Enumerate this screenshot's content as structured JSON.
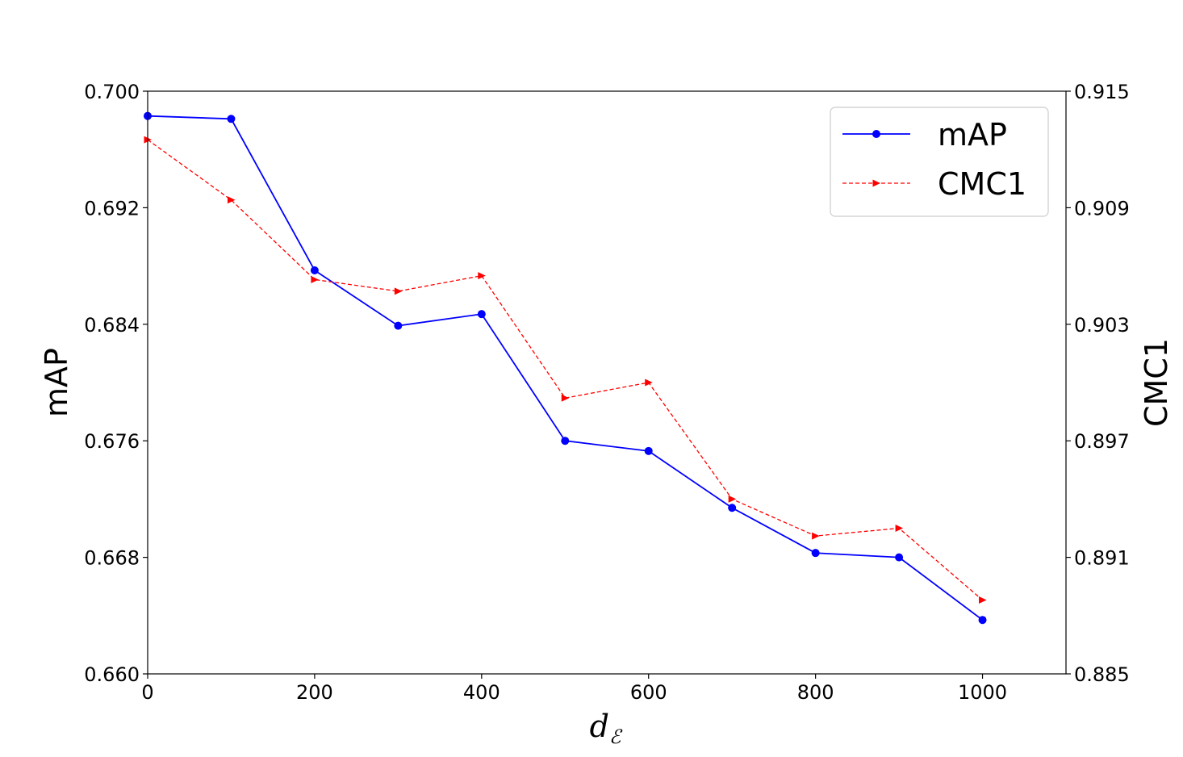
{
  "chart_data": {
    "type": "line",
    "title": "",
    "x": [
      0,
      100,
      200,
      300,
      400,
      500,
      600,
      700,
      800,
      900,
      1000
    ],
    "xlabel": "d",
    "xlabel_subscript": "ℰ",
    "ylabel": "mAP",
    "y2label": "CMC1",
    "xlim": [
      0,
      1100
    ],
    "ylim": [
      0.66,
      0.7
    ],
    "y2lim": [
      0.885,
      0.915
    ],
    "xticks": [
      "0",
      "200",
      "400",
      "600",
      "800",
      "1000"
    ],
    "yticks": [
      "0.660",
      "0.668",
      "0.676",
      "0.684",
      "0.692",
      "0.700"
    ],
    "y2ticks": [
      "0.885",
      "0.891",
      "0.897",
      "0.903",
      "0.909",
      "0.915"
    ],
    "legend_position": "top-right",
    "grid": false,
    "series": [
      {
        "name": "mAP",
        "axis": "left",
        "color": "#0000ff",
        "line_style": "solid",
        "marker": "circle",
        "values": [
          0.6983,
          0.6981,
          0.6877,
          0.6839,
          0.6847,
          0.676,
          0.6753,
          0.6714,
          0.6683,
          0.668,
          0.6637
        ]
      },
      {
        "name": "CMC1",
        "axis": "right",
        "color": "#ff0000",
        "line_style": "dashed",
        "marker": "triangle-right",
        "values": [
          0.9125,
          0.9094,
          0.9053,
          0.9047,
          0.9055,
          0.8992,
          0.9,
          0.894,
          0.8921,
          0.8925,
          0.8888
        ]
      }
    ]
  }
}
